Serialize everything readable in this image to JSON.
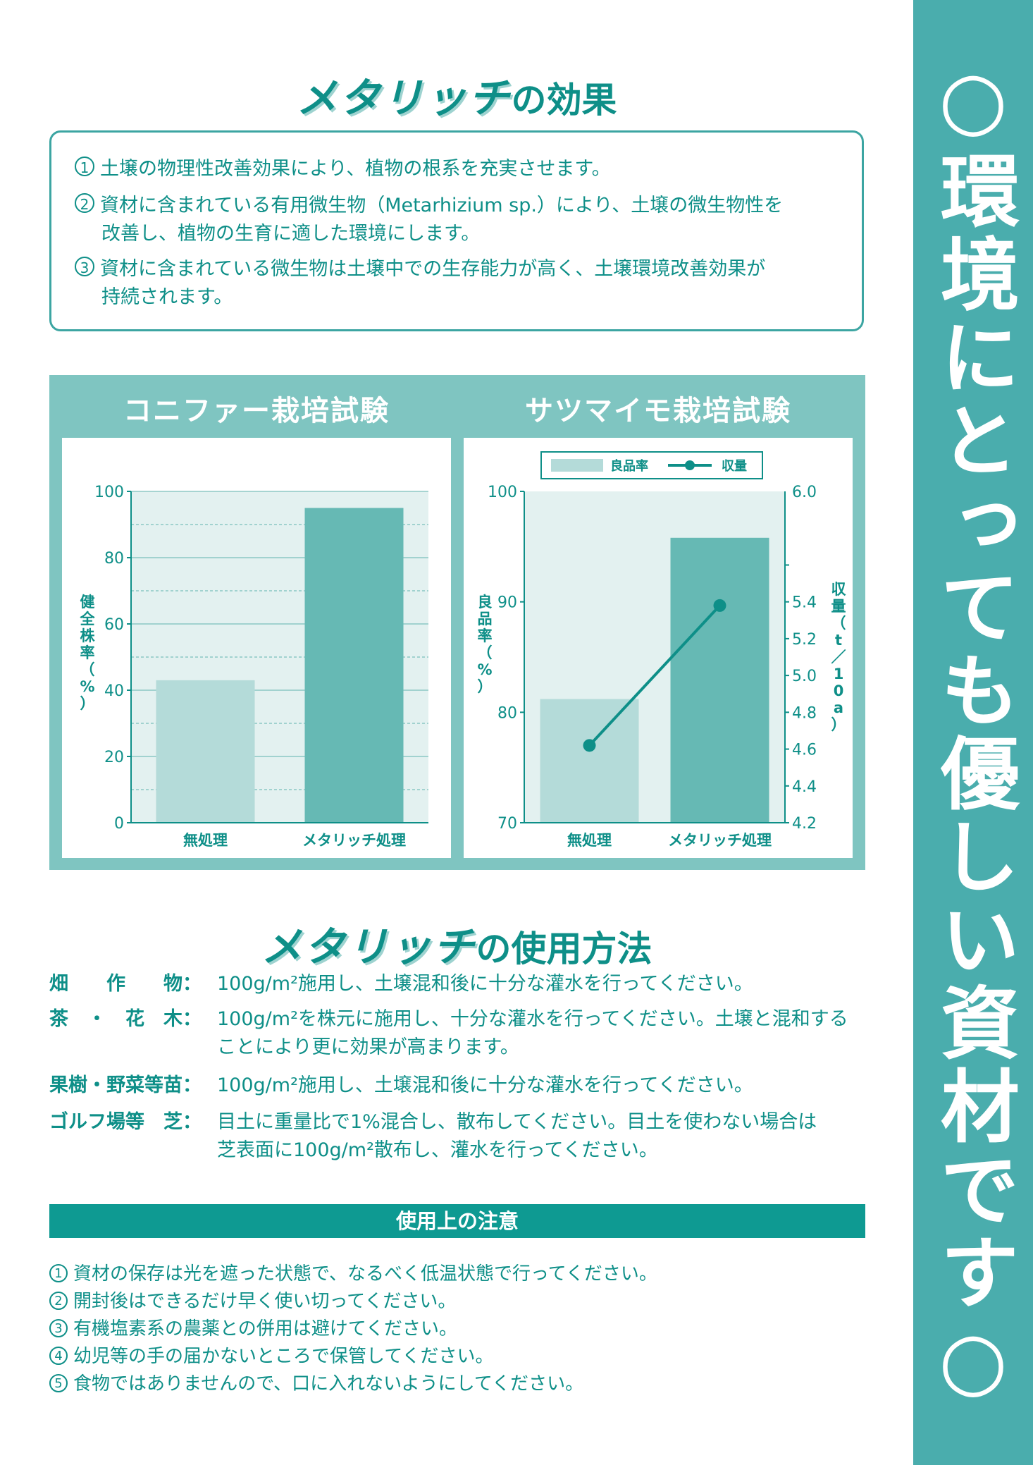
{
  "side_banner": "○環境にとっても優しい資材です○",
  "effects_title": {
    "brand": "メタリッチ",
    "rest": "の効果"
  },
  "effects": [
    {
      "num": "1",
      "lines": [
        "土壌の物理性改善効果により、植物の根系を充実させます。"
      ]
    },
    {
      "num": "2",
      "lines": [
        "資材に含まれている有用微生物（Metarhizium sp.）により、土壌の微生物性を",
        "改善し、植物の生育に適した環境にします。"
      ]
    },
    {
      "num": "3",
      "lines": [
        "資材に含まれている微生物は土壌中での生存能力が高く、土壌環境改善効果が",
        "持続されます。"
      ]
    }
  ],
  "chart_data": [
    {
      "type": "bar",
      "title": "コニファー栽培試験",
      "categories": [
        "無処理",
        "メタリッチ処理"
      ],
      "values": [
        43,
        95
      ],
      "ylabel": "健全株率（%）",
      "ylim": [
        0,
        100
      ],
      "yticks": [
        "0",
        "20",
        "40",
        "60",
        "80",
        "100"
      ],
      "colors": [
        "#b4dbd9",
        "#66b9b4"
      ]
    },
    {
      "type": "bar",
      "title": "サツマイモ栽培試験",
      "categories": [
        "無処理",
        "メタリッチ処理"
      ],
      "series": [
        {
          "name": "良品率",
          "type": "bar",
          "values": [
            81.2,
            95.8
          ]
        },
        {
          "name": "収量",
          "type": "line",
          "values": [
            4.62,
            5.38
          ]
        }
      ],
      "ylabel": "良品率（%）",
      "ylim": [
        70,
        100
      ],
      "yticks": [
        "70",
        "80",
        "90",
        "100"
      ],
      "y2label": "収量（t／10a）",
      "y2lim": [
        4.2,
        6.0
      ],
      "y2ticks": [
        "4.2",
        "4.4",
        "4.6",
        "4.8",
        "5.0",
        "5.2",
        "5.4",
        "6.0"
      ],
      "legend": [
        "良品率",
        "収量"
      ],
      "legend_position": "top",
      "colors": [
        "#b4dbd9",
        "#66b9b4",
        "#0e8f88"
      ]
    }
  ],
  "usage_title": {
    "brand": "メタリッチ",
    "rest": "の使用方法"
  },
  "usage": [
    {
      "label": "畑　　作　　物：",
      "lines": [
        "100g/m²施用し、土壌混和後に十分な灌水を行ってください。"
      ]
    },
    {
      "label": "茶　・　花　木：",
      "lines": [
        "100g/m²を株元に施用し、十分な灌水を行ってください。土壌と混和する",
        "ことにより更に効果が高まります。"
      ]
    },
    {
      "label": "果樹・野菜等苗：",
      "lines": [
        "100g/m²施用し、土壌混和後に十分な灌水を行ってください。"
      ]
    },
    {
      "label": "ゴルフ場等　芝：",
      "lines": [
        "目土に重量比で1%混合し、散布してください。目土を使わない場合は",
        "芝表面に100g/m²散布し、灌水を行ってください。"
      ]
    }
  ],
  "caution_title": "使用上の注意",
  "cautions": [
    {
      "num": "1",
      "text": "資材の保存は光を遮った状態で、なるべく低温状態で行ってください。"
    },
    {
      "num": "2",
      "text": "開封後はできるだけ早く使い切ってください。"
    },
    {
      "num": "3",
      "text": "有機塩素系の農薬との併用は避けてください。"
    },
    {
      "num": "4",
      "text": "幼児等の手の届かないところで保管してください。"
    },
    {
      "num": "5",
      "text": "食物ではありませんので、口に入れないようにしてください。"
    }
  ]
}
